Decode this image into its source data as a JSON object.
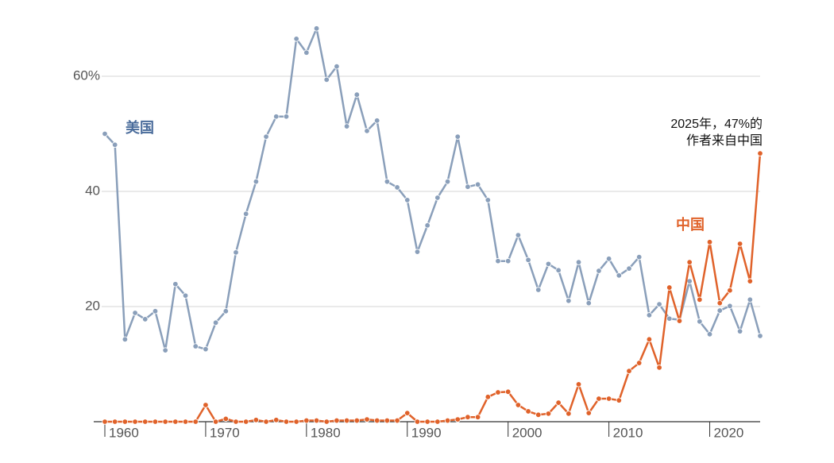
{
  "chart_data": {
    "type": "line",
    "x": [
      1960,
      1961,
      1962,
      1963,
      1964,
      1965,
      1966,
      1967,
      1968,
      1969,
      1970,
      1971,
      1972,
      1973,
      1974,
      1975,
      1976,
      1977,
      1978,
      1979,
      1980,
      1981,
      1982,
      1983,
      1984,
      1985,
      1986,
      1987,
      1988,
      1989,
      1990,
      1991,
      1992,
      1993,
      1994,
      1995,
      1996,
      1997,
      1998,
      1999,
      2000,
      2001,
      2002,
      2003,
      2004,
      2005,
      2006,
      2007,
      2008,
      2009,
      2010,
      2011,
      2012,
      2013,
      2014,
      2015,
      2016,
      2017,
      2018,
      2019,
      2020,
      2021,
      2022,
      2023,
      2024,
      2025
    ],
    "series": [
      {
        "name": "美国",
        "color": "#8a9fba",
        "label_color": "#4a6c9b",
        "values": [
          50,
          48.1,
          14.3,
          18.9,
          17.8,
          19.2,
          12.4,
          23.9,
          21.9,
          13.1,
          12.6,
          17.2,
          19.2,
          29.4,
          36.1,
          41.7,
          49.5,
          53,
          53,
          66.5,
          64.1,
          68.3,
          59.4,
          61.7,
          51.3,
          56.8,
          50.5,
          52.3,
          41.7,
          40.7,
          38.5,
          29.5,
          34.1,
          38.9,
          41.7,
          49.5,
          40.8,
          41.2,
          38.5,
          27.9,
          27.9,
          32.4,
          28.1,
          22.9,
          27.4,
          26.3,
          21,
          27.7,
          20.6,
          26.2,
          28.3,
          25.4,
          26.6,
          28.6,
          18.5,
          20.4,
          17.9,
          17.7,
          24.4,
          17.4,
          15.2,
          19.3,
          20.1,
          15.7,
          21.2,
          14.9
        ]
      },
      {
        "name": "中国",
        "color": "#e0622a",
        "label_color": "#e0622a",
        "values": [
          0,
          0,
          0,
          0,
          0,
          0,
          0,
          0,
          0,
          0,
          2.9,
          0,
          0.5,
          0,
          0,
          0.3,
          0,
          0.3,
          0,
          0,
          0.2,
          0.2,
          0,
          0.2,
          0.2,
          0.2,
          0.4,
          0.2,
          0.2,
          0.2,
          1.5,
          0,
          0,
          0,
          0.2,
          0.4,
          0.8,
          0.8,
          4.3,
          5.1,
          5.2,
          2.9,
          1.8,
          1.2,
          1.4,
          3.3,
          1.4,
          6.5,
          1.5,
          4,
          4,
          3.7,
          8.8,
          10.2,
          14.3,
          9.4,
          23.3,
          17.5,
          27.7,
          21.2,
          31.2,
          20.6,
          22.8,
          30.9,
          24.4,
          46.6
        ]
      }
    ],
    "annotations": [
      "2025年，47%的",
      "作者来自中国"
    ],
    "xlim": [
      1960,
      2025
    ],
    "xticks": [
      1960,
      1970,
      1980,
      1990,
      2000,
      2010,
      2020
    ],
    "ylim": [
      0,
      72
    ],
    "yticks": [
      20,
      40,
      {
        "value": 60,
        "label": "60%"
      }
    ],
    "grid": true
  }
}
